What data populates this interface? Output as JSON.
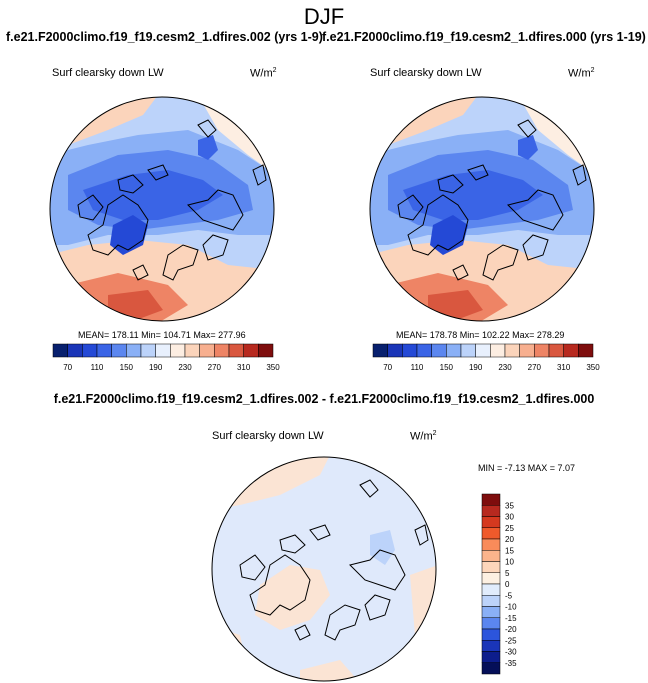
{
  "figure": {
    "season_title": "DJF",
    "left_run": "f.e21.F2000climo.f19_f19.cesm2_1.dfires.002 (yrs 1-9)",
    "right_run": "f.e21.F2000climo.f19_f19.cesm2_1.dfires.000 (yrs 1-19)",
    "diff_title": "f.e21.F2000climo.f19_f19.cesm2_1.dfires.002 - f.e21.F2000climo.f19_f19.cesm2_1.dfires.000"
  },
  "panels": {
    "left": {
      "variable": "Surf clearsky down LW",
      "units": "W/m",
      "units_exp": "2",
      "stats": "MEAN= 178.11   Min= 104.71   Max= 277.96"
    },
    "right": {
      "variable": "Surf clearsky down LW",
      "units": "W/m",
      "units_exp": "2",
      "stats": "MEAN= 178.78   Min= 102.22   Max= 278.29"
    },
    "diff": {
      "variable": "Surf clearsky down LW",
      "units": "W/m",
      "units_exp": "2",
      "stats": "MIN =  -7.13 MAX =   7.07"
    }
  },
  "colorbars": {
    "abs_labels": [
      "70",
      "110",
      "150",
      "190",
      "230",
      "270",
      "310",
      "350"
    ],
    "abs_colors": [
      "#08206e",
      "#1a35b8",
      "#2449d6",
      "#3a64e6",
      "#5b86ef",
      "#8ab0f6",
      "#bcd3fa",
      "#e8f0fd",
      "#fdeee2",
      "#fbd4bb",
      "#f7af8f",
      "#ee8465",
      "#d9573f",
      "#b7291f",
      "#7e0d0d"
    ],
    "diff_labels": [
      "35",
      "30",
      "25",
      "20",
      "15",
      "10",
      "5",
      "0",
      "-5",
      "-10",
      "-15",
      "-20",
      "-25",
      "-30",
      "-35"
    ],
    "diff_colors": [
      "#7e0d0d",
      "#b7291f",
      "#d5391f",
      "#ef5a2b",
      "#f98b5a",
      "#fbb48c",
      "#fdd6bb",
      "#fdf0e2",
      "#e1ecfc",
      "#bcd3fa",
      "#8ab0f6",
      "#5b86ef",
      "#2c55dc",
      "#1a35b8",
      "#0d1d8c",
      "#050f58"
    ]
  },
  "colors": {
    "abs_fill_deep": "#2449d6",
    "abs_fill_mid": "#3a64e6",
    "abs_fill_light": "#8ab0f6",
    "abs_fill_pale": "#bcd3fa",
    "abs_fill_warm": "#f7af8f",
    "abs_fill_hot": "#ee8465",
    "diff_fill_neutral_blue": "#dfe9fb",
    "diff_fill_neutral_warm": "#fbe4d4",
    "coast": "#000000"
  }
}
